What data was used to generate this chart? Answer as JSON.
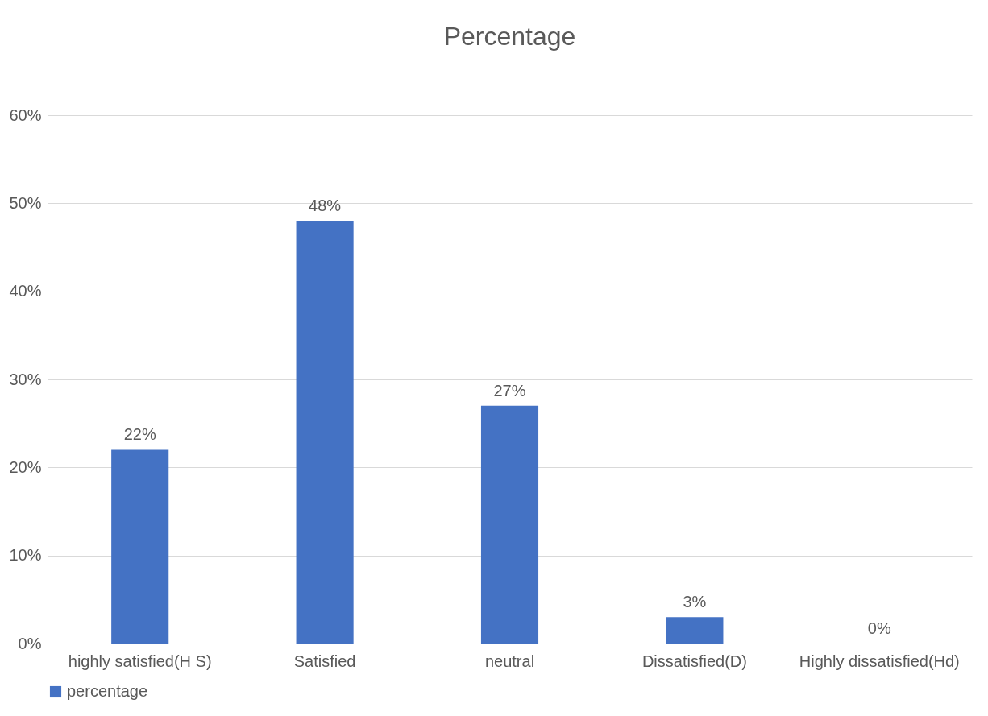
{
  "chart_data": {
    "type": "bar",
    "title": "Percentage",
    "categories": [
      "highly satisfied(H S)",
      "Satisfied",
      "neutral",
      "Dissatisfied(D)",
      "Highly dissatisfied(Hd)"
    ],
    "series": [
      {
        "name": "percentage",
        "color": "#4472c4",
        "values": [
          22,
          48,
          27,
          3,
          0
        ],
        "value_labels": [
          "22%",
          "48%",
          "27%",
          "3%",
          "0%"
        ]
      }
    ],
    "ylim": [
      0,
      60
    ],
    "yticks": [
      {
        "value": 0,
        "label": "0%"
      },
      {
        "value": 10,
        "label": "10%"
      },
      {
        "value": 20,
        "label": "20%"
      },
      {
        "value": 30,
        "label": "30%"
      },
      {
        "value": 40,
        "label": "40%"
      },
      {
        "value": 50,
        "label": "50%"
      },
      {
        "value": 60,
        "label": "60%"
      }
    ],
    "grid": "y",
    "legend": "bottom"
  }
}
